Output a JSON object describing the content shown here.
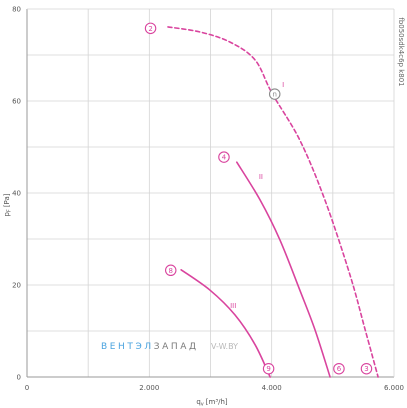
{
  "chart_data": {
    "type": "line",
    "title": "",
    "xlabel": {
      "symbol": "q",
      "subscript": "v",
      "unit": "[m³/h]"
    },
    "ylabel": {
      "symbol": "p",
      "subscript": "F",
      "unit": "[Pa]"
    },
    "xlim": [
      0,
      6000
    ],
    "ylim": [
      0,
      80
    ],
    "grid": true,
    "x_grid_step": 1000,
    "y_grid_step": 10,
    "x_ticks": [
      {
        "value": 0,
        "label": "0"
      },
      {
        "value": 2000,
        "label": "2.000"
      },
      {
        "value": 4000,
        "label": "4.000"
      },
      {
        "value": 6000,
        "label": "6.000"
      }
    ],
    "y_ticks": [
      {
        "value": 0,
        "label": "0"
      },
      {
        "value": 20,
        "label": "20"
      },
      {
        "value": 40,
        "label": "40"
      },
      {
        "value": 60,
        "label": "60"
      },
      {
        "value": 80,
        "label": "80"
      }
    ],
    "series": [
      {
        "name": "I",
        "line_style": "dashed",
        "color": "#d9449e",
        "label_at": {
          "x": 4170,
          "y": 63
        },
        "points": [
          {
            "x": 2305,
            "y": 76.1
          },
          {
            "x": 2830,
            "y": 75.0
          },
          {
            "x": 3320,
            "y": 72.8
          },
          {
            "x": 3730,
            "y": 68.9
          },
          {
            "x": 4005,
            "y": 61.7
          },
          {
            "x": 4460,
            "y": 51.5
          },
          {
            "x": 4870,
            "y": 38.5
          },
          {
            "x": 5280,
            "y": 22.2
          },
          {
            "x": 5530,
            "y": 10.2
          },
          {
            "x": 5740,
            "y": 0
          }
        ]
      },
      {
        "name": "II",
        "line_style": "solid",
        "color": "#d9449e",
        "label_at": {
          "x": 3790,
          "y": 43
        },
        "points": [
          {
            "x": 3430,
            "y": 46.7
          },
          {
            "x": 3810,
            "y": 38.5
          },
          {
            "x": 4135,
            "y": 29.8
          },
          {
            "x": 4460,
            "y": 18.9
          },
          {
            "x": 4710,
            "y": 10.2
          },
          {
            "x": 4955,
            "y": 0
          }
        ]
      },
      {
        "name": "III",
        "line_style": "solid",
        "color": "#d9449e",
        "label_at": {
          "x": 3320,
          "y": 15
        },
        "points": [
          {
            "x": 2520,
            "y": 23.3
          },
          {
            "x": 2990,
            "y": 18.9
          },
          {
            "x": 3400,
            "y": 13.5
          },
          {
            "x": 3730,
            "y": 7.0
          },
          {
            "x": 3975,
            "y": 0
          }
        ]
      }
    ],
    "markers": [
      {
        "label": "2",
        "x": 2020,
        "y": 75.8,
        "color": "#d9449e"
      },
      {
        "label": "n",
        "x": 4050,
        "y": 61.5,
        "color": "#8a8a8a"
      },
      {
        "label": "3",
        "x": 5550,
        "y": 1.8,
        "color": "#d9449e"
      },
      {
        "label": "4",
        "x": 3220,
        "y": 47.8,
        "color": "#d9449e"
      },
      {
        "label": "6",
        "x": 5100,
        "y": 1.8,
        "color": "#d9449e"
      },
      {
        "label": "8",
        "x": 2350,
        "y": 23.2,
        "color": "#d9449e"
      },
      {
        "label": "9",
        "x": 3950,
        "y": 1.8,
        "color": "#d9449e"
      }
    ]
  },
  "watermark": {
    "part1": "ВЕНТЭЛ",
    "part2": "ЗАПАД",
    "site": "V-W.BY"
  },
  "model_code": "fb050sdk4c6p k801",
  "colors": {
    "accent": "#d9449e",
    "grid": "#d4d4d4",
    "axis": "#9a9a9a",
    "watermark_blue": "#4aa3df",
    "watermark_gray": "#7a7a7a"
  }
}
